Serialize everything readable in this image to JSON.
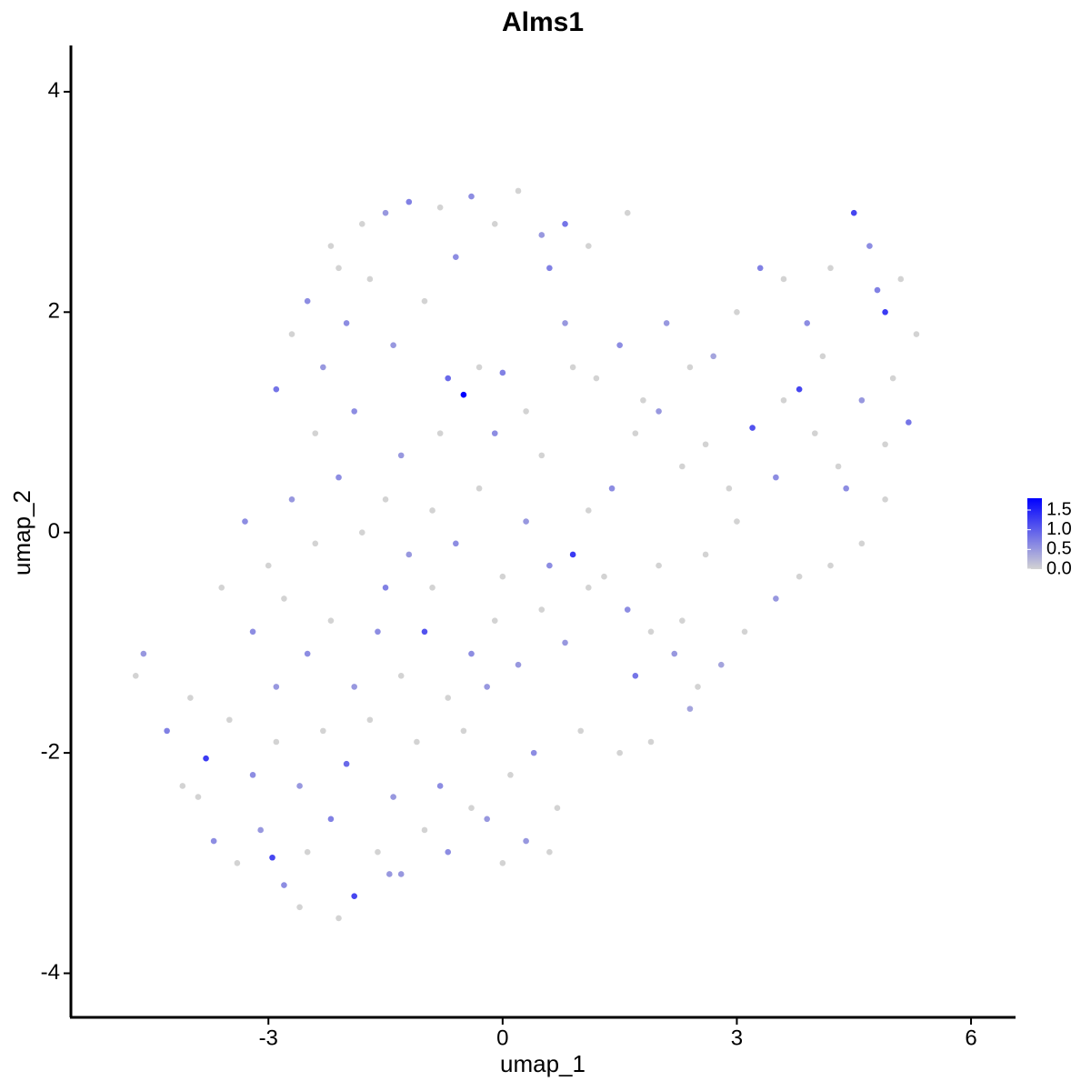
{
  "chart_data": {
    "type": "scatter",
    "title": "Alms1",
    "xlabel": "umap_1",
    "ylabel": "umap_2",
    "xlim": [
      -5.53,
      6.57
    ],
    "ylim": [
      -4.4,
      4.42
    ],
    "xticks": [
      -3,
      0,
      3,
      6
    ],
    "yticks": [
      -4,
      -2,
      0,
      2,
      4
    ],
    "color_low": "#d3d3d3",
    "color_high": "#0000ff",
    "clim": [
      0,
      1.8
    ],
    "cticks": [
      {
        "value": 0,
        "label": "0.0"
      },
      {
        "value": 0.5,
        "label": "0.5"
      },
      {
        "value": 1,
        "label": "1.0"
      },
      {
        "value": 1.5,
        "label": "1.5"
      }
    ],
    "x": [
      -2.5,
      -2.2,
      -1.8,
      -1.5,
      -1.2,
      -0.8,
      -0.4,
      -0.1,
      0.2,
      0.5,
      0.8,
      1.1,
      1.6,
      -2.9,
      -2.7,
      -2.3,
      -2.0,
      -1.7,
      -1.4,
      -1.0,
      -0.7,
      -0.5,
      -0.3,
      0.0,
      0.3,
      0.6,
      0.9,
      -2.4,
      -1.9,
      -1.3,
      -0.8,
      -0.1,
      0.5,
      0.8,
      -0.6,
      -2.1,
      1.2,
      1.5,
      1.8,
      2.1,
      2.4,
      2.7,
      3.0,
      3.3,
      3.6,
      3.9,
      4.2,
      4.5,
      4.7,
      4.9,
      5.1,
      5.3,
      5.2,
      4.9,
      4.6,
      4.3,
      4.0,
      3.8,
      3.5,
      3.2,
      2.9,
      2.6,
      2.3,
      2.0,
      1.7,
      1.4,
      1.1,
      4.9,
      4.6,
      4.2,
      3.8,
      3.5,
      3.1,
      2.8,
      2.5,
      2.2,
      1.9,
      1.6,
      1.3,
      2.0,
      2.6,
      3.0,
      2.4,
      1.9,
      1.5,
      1.7,
      2.3,
      4.4,
      5.0,
      4.8,
      4.1,
      3.6,
      -3.3,
      -3.0,
      -2.7,
      -2.4,
      -2.1,
      -1.8,
      -1.5,
      -1.2,
      -0.9,
      -0.6,
      -0.3,
      0.0,
      0.3,
      0.6,
      0.9,
      -3.6,
      -3.2,
      -2.8,
      -2.5,
      -2.2,
      -1.9,
      -1.6,
      -1.3,
      -1.0,
      -0.7,
      -0.4,
      -0.1,
      0.2,
      0.5,
      0.8,
      1.1,
      -4.7,
      -4.6,
      -4.3,
      -4.0,
      -3.8,
      -3.5,
      -3.2,
      -2.9,
      -2.6,
      -2.3,
      -2.0,
      -1.7,
      -1.4,
      -1.1,
      -0.8,
      -0.5,
      -0.2,
      0.1,
      0.4,
      0.7,
      1.0,
      -4.1,
      -3.7,
      -3.4,
      -3.1,
      -2.8,
      -2.5,
      -2.2,
      -1.9,
      -1.6,
      -1.3,
      -1.0,
      -0.7,
      -0.4,
      0.0,
      0.3,
      0.6,
      -2.6,
      -2.1,
      -1.45,
      -2.95,
      -3.9,
      -0.2,
      -1.5,
      -2.9,
      -0.9
    ],
    "y": [
      2.1,
      2.6,
      2.8,
      2.9,
      3.0,
      2.95,
      3.05,
      2.8,
      3.1,
      2.7,
      2.8,
      2.6,
      2.9,
      1.3,
      1.8,
      1.5,
      1.9,
      2.3,
      1.7,
      2.1,
      1.4,
      1.25,
      1.5,
      1.45,
      1.1,
      2.4,
      1.5,
      0.9,
      1.1,
      0.7,
      0.9,
      0.9,
      0.7,
      1.9,
      2.5,
      2.4,
      1.4,
      1.7,
      1.2,
      1.9,
      1.5,
      1.6,
      2.0,
      2.4,
      2.3,
      1.9,
      2.4,
      2.9,
      2.6,
      2.0,
      2.3,
      1.8,
      1.0,
      0.8,
      1.2,
      0.6,
      0.9,
      1.3,
      0.5,
      0.95,
      0.4,
      0.8,
      0.6,
      1.1,
      0.9,
      0.4,
      0.2,
      0.3,
      -0.1,
      -0.3,
      -0.4,
      -0.6,
      -0.9,
      -1.2,
      -1.4,
      -1.1,
      -0.9,
      -0.7,
      -0.4,
      -0.3,
      -0.2,
      0.1,
      -1.6,
      -1.9,
      -2.0,
      -1.3,
      -0.8,
      0.4,
      1.4,
      2.2,
      1.6,
      1.2,
      0.1,
      -0.3,
      0.3,
      -0.1,
      0.5,
      0.0,
      0.3,
      -0.2,
      0.2,
      -0.1,
      0.4,
      -0.4,
      0.1,
      -0.3,
      -0.2,
      -0.5,
      -0.9,
      -0.6,
      -1.1,
      -0.8,
      -1.4,
      -0.9,
      -1.3,
      -0.9,
      -1.5,
      -1.1,
      -0.8,
      -1.2,
      -0.7,
      -1.0,
      -0.5,
      -1.3,
      -1.1,
      -1.8,
      -1.5,
      -2.05,
      -1.7,
      -2.2,
      -1.9,
      -2.3,
      -1.8,
      -2.1,
      -1.7,
      -2.4,
      -1.9,
      -2.3,
      -1.8,
      -2.6,
      -2.2,
      -2.0,
      -2.5,
      -1.8,
      -2.3,
      -2.8,
      -3.0,
      -2.7,
      -3.2,
      -2.9,
      -2.6,
      -3.3,
      -2.9,
      -3.1,
      -2.7,
      -2.9,
      -2.5,
      -3.0,
      -2.8,
      -2.9,
      -3.4,
      -3.5,
      -3.1,
      -2.95,
      -2.4,
      -1.4,
      -0.5,
      -1.4,
      -0.5
    ],
    "values": [
      0.6,
      0,
      0,
      0.5,
      0.7,
      0,
      0.6,
      0,
      0,
      0.5,
      0.8,
      0,
      0,
      0.8,
      0,
      0.5,
      0.6,
      0,
      0.5,
      0,
      0.9,
      1.8,
      0,
      0.7,
      0,
      0.7,
      0,
      0,
      0.6,
      0.5,
      0,
      0.6,
      0,
      0.5,
      0.6,
      0,
      0,
      0.6,
      0,
      0.5,
      0,
      0.4,
      0,
      0.7,
      0,
      0.6,
      0,
      1.2,
      0.6,
      1.3,
      0,
      0,
      0.8,
      0,
      0.5,
      0,
      0,
      1.2,
      0.6,
      1.1,
      0,
      0,
      0,
      0.5,
      0,
      0.6,
      0,
      0,
      0,
      0,
      0,
      0.5,
      0,
      0.4,
      0,
      0.5,
      0,
      0.6,
      0,
      0,
      0,
      0,
      0.4,
      0,
      0,
      0.8,
      0,
      0.6,
      0,
      0.7,
      0,
      0,
      0.6,
      0,
      0.5,
      0,
      0.6,
      0,
      0,
      0.5,
      0,
      0.6,
      0,
      0,
      0.5,
      0.6,
      1.3,
      0,
      0.6,
      0,
      0.6,
      0,
      0.5,
      0.6,
      0,
      1.1,
      0,
      0.6,
      0,
      0.5,
      0,
      0.5,
      0,
      0,
      0.5,
      0.7,
      0,
      1.3,
      0,
      0.6,
      0,
      0.5,
      0,
      0.9,
      0,
      0.5,
      0,
      0.6,
      0,
      0.5,
      0,
      0.6,
      0,
      0,
      0,
      0.6,
      0,
      0.5,
      0.6,
      0,
      0.7,
      1.2,
      0,
      0.5,
      0,
      0.6,
      0,
      0,
      0.5,
      0,
      0,
      0,
      0.5,
      1.2,
      0,
      0.5,
      0.7,
      0.5,
      0
    ]
  }
}
